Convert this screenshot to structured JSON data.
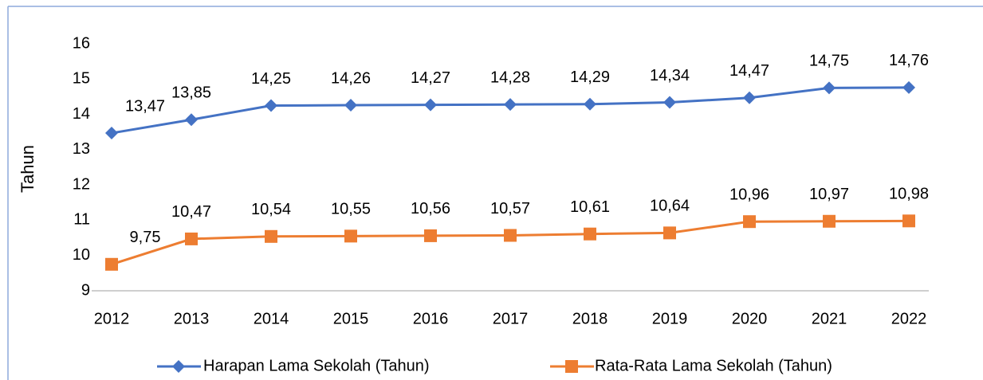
{
  "chart_data": {
    "type": "line",
    "y_label": "Tahun",
    "categories": [
      "2012",
      "2013",
      "2014",
      "2015",
      "2016",
      "2017",
      "2018",
      "2019",
      "2020",
      "2021",
      "2022"
    ],
    "series": [
      {
        "name": "Harapan Lama Sekolah (Tahun)",
        "color": "#4472c4",
        "marker": "diamond",
        "values": [
          13.47,
          13.85,
          14.25,
          14.26,
          14.27,
          14.28,
          14.29,
          14.34,
          14.47,
          14.75,
          14.76
        ],
        "value_labels": [
          "13,47",
          "13,85",
          "14,25",
          "14,26",
          "14,27",
          "14,28",
          "14,29",
          "14,34",
          "14,47",
          "14,75",
          "14,76"
        ]
      },
      {
        "name": "Rata-Rata Lama Sekolah (Tahun)",
        "color": "#ed7d31",
        "marker": "square",
        "values": [
          9.75,
          10.47,
          10.54,
          10.55,
          10.56,
          10.57,
          10.61,
          10.64,
          10.96,
          10.97,
          10.98
        ],
        "value_labels": [
          "9,75",
          "10,47",
          "10,54",
          "10,55",
          "10,56",
          "10,57",
          "10,61",
          "10,64",
          "10,96",
          "10,97",
          "10,98"
        ]
      }
    ],
    "ylim": [
      9,
      16
    ],
    "yticks": [
      9,
      10,
      11,
      12,
      13,
      14,
      15,
      16
    ],
    "grid": false,
    "legend": "bottom"
  }
}
